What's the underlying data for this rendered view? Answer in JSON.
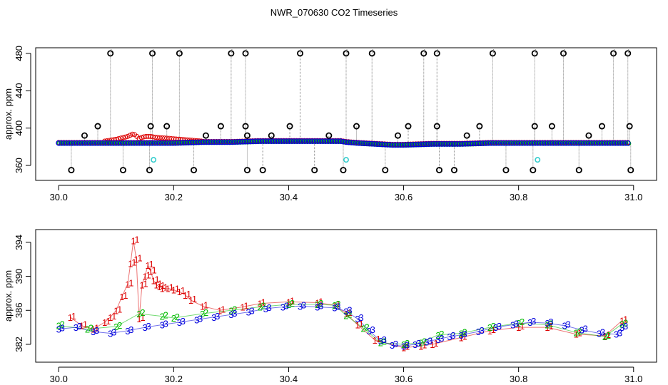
{
  "title": "NWR_070630  CO2 Timeseries",
  "chart_data": [
    {
      "type": "scatter",
      "panel": "top",
      "title": "",
      "xlabel": "",
      "ylabel": "approx. ppm",
      "xlim": [
        29.96,
        31.04
      ],
      "ylim": [
        344,
        486
      ],
      "xticks": [
        30.0,
        30.2,
        30.4,
        30.6,
        30.8,
        31.0
      ],
      "xtick_labels": [
        "30.0",
        "30.2",
        "30.4",
        "30.6",
        "30.8",
        "31.0"
      ],
      "yticks": [
        360,
        400,
        440,
        480
      ],
      "ytick_labels": [
        "360",
        "400",
        "440",
        "480"
      ],
      "grid": false,
      "colors": {
        "red": "#dd0000",
        "green": "#00bb00",
        "blue": "#0000dd",
        "black": "#000000",
        "cyan": "#33cccc",
        "gray": "#888888"
      },
      "baseline": {
        "x": [
          30.0,
          30.05,
          30.1,
          30.15,
          30.2,
          30.25,
          30.3,
          30.35,
          30.4,
          30.45,
          30.49,
          30.5,
          30.52,
          30.55,
          30.58,
          30.6,
          30.65,
          30.7,
          30.75,
          30.8,
          30.85,
          30.9,
          30.95,
          30.99
        ],
        "y": [
          384,
          384,
          384,
          384,
          384,
          385,
          385,
          386,
          386,
          386,
          386,
          385,
          384,
          383,
          382,
          382,
          383,
          383,
          384,
          384,
          384,
          384,
          384,
          384
        ]
      },
      "red_excursion": {
        "x": [
          30.08,
          30.1,
          30.12,
          30.13,
          30.14,
          30.15,
          30.16,
          30.17,
          30.19,
          30.21,
          30.23,
          30.25
        ],
        "y": [
          386,
          388,
          391,
          394,
          389,
          391,
          391,
          390,
          389,
          388,
          387,
          386
        ]
      },
      "outliers_high": {
        "x": [
          30.09,
          30.163,
          30.21,
          30.3,
          30.325,
          30.42,
          30.5,
          30.545,
          30.635,
          30.658,
          30.755,
          30.828,
          30.878,
          30.965,
          30.99
        ],
        "y": [
          480,
          480,
          480,
          480,
          480,
          480,
          480,
          480,
          480,
          480,
          480,
          480,
          480,
          480,
          480
        ]
      },
      "outliers_mid": {
        "x": [
          30.045,
          30.068,
          30.16,
          30.188,
          30.256,
          30.282,
          30.325,
          30.328,
          30.37,
          30.402,
          30.47,
          30.518,
          30.59,
          30.608,
          30.658,
          30.71,
          30.732,
          30.828,
          30.858,
          30.922,
          30.945,
          30.993
        ],
        "y": [
          392,
          402,
          402,
          402,
          392,
          402,
          402,
          392,
          392,
          402,
          392,
          402,
          392,
          402,
          402,
          392,
          402,
          402,
          402,
          392,
          402,
          402
        ]
      },
      "outliers_low": {
        "x": [
          30.022,
          30.112,
          30.158,
          30.235,
          30.328,
          30.355,
          30.445,
          30.495,
          30.568,
          30.662,
          30.688,
          30.778,
          30.825,
          30.905,
          30.995
        ],
        "y": [
          355,
          355,
          355,
          355,
          355,
          355,
          355,
          355,
          355,
          355,
          355,
          355,
          355,
          355,
          355
        ]
      },
      "cyan_points": {
        "x": [
          30.165,
          30.5,
          30.833
        ],
        "y": [
          366,
          366,
          366
        ]
      }
    },
    {
      "type": "scatter",
      "panel": "bottom",
      "title": "",
      "xlabel": "",
      "ylabel": "approx. ppm",
      "xlim": [
        29.96,
        31.04
      ],
      "ylim": [
        379.9,
        395.5
      ],
      "xticks": [
        30.0,
        30.2,
        30.4,
        30.6,
        30.8,
        31.0
      ],
      "xtick_labels": [
        "30.0",
        "30.2",
        "30.4",
        "30.6",
        "30.8",
        "31.0"
      ],
      "yticks": [
        382,
        386,
        390,
        394
      ],
      "ytick_labels": [
        "382",
        "386",
        "390",
        "394"
      ],
      "grid": false,
      "series": [
        {
          "marker": "1",
          "color": "#dd0000",
          "x": [
            30.02,
            30.04,
            30.06,
            30.08,
            30.09,
            30.1,
            30.11,
            30.12,
            30.125,
            30.13,
            30.135,
            30.14,
            30.145,
            30.15,
            30.155,
            30.16,
            30.165,
            30.17,
            30.175,
            30.18,
            30.19,
            30.2,
            30.21,
            30.22,
            30.23,
            30.25,
            30.28,
            30.32,
            30.35,
            30.4,
            30.45,
            30.48,
            30.5,
            30.52,
            30.55,
            30.6,
            30.63,
            30.65,
            30.7,
            30.75,
            30.8,
            30.85,
            30.9,
            30.95,
            30.98
          ],
          "y": [
            385.2,
            384.2,
            383.8,
            384.6,
            385.2,
            386.0,
            387.6,
            389.1,
            391.5,
            394.2,
            392.0,
            385.0,
            389.0,
            390.0,
            391.3,
            390.6,
            389.5,
            389.0,
            388.8,
            388.6,
            388.6,
            388.4,
            388.2,
            387.8,
            387.2,
            386.5,
            386.0,
            386.4,
            386.8,
            387.0,
            386.9,
            386.6,
            385.6,
            384.3,
            382.5,
            381.6,
            381.8,
            382.0,
            382.8,
            383.6,
            384.0,
            384.0,
            383.2,
            383.0,
            384.8
          ]
        },
        {
          "marker": "2",
          "color": "#00bb00",
          "x": [
            30.0,
            30.05,
            30.1,
            30.14,
            30.18,
            30.2,
            30.25,
            30.3,
            30.35,
            30.4,
            30.45,
            30.48,
            30.5,
            30.53,
            30.56,
            30.6,
            30.63,
            30.66,
            30.7,
            30.75,
            30.8,
            30.85,
            30.9,
            30.95,
            30.98
          ],
          "y": [
            384.2,
            383.8,
            384.1,
            385.6,
            385.3,
            385.1,
            385.6,
            386.0,
            386.4,
            386.7,
            386.7,
            386.6,
            385.4,
            383.9,
            382.2,
            382.0,
            382.2,
            383.1,
            383.3,
            384.0,
            384.5,
            384.3,
            383.4,
            382.9,
            384.4
          ]
        },
        {
          "marker": "3",
          "color": "#0000dd",
          "x": [
            30.0,
            30.03,
            30.06,
            30.09,
            30.12,
            30.15,
            30.18,
            30.21,
            30.24,
            30.27,
            30.3,
            30.33,
            30.36,
            30.39,
            30.42,
            30.45,
            30.48,
            30.5,
            30.52,
            30.54,
            30.56,
            30.58,
            30.6,
            30.62,
            30.64,
            30.66,
            30.68,
            30.7,
            30.73,
            30.76,
            30.79,
            30.82,
            30.85,
            30.88,
            30.91,
            30.94,
            30.97,
            30.98
          ],
          "y": [
            383.8,
            384.0,
            383.5,
            383.3,
            383.6,
            384.0,
            384.3,
            384.6,
            384.9,
            385.2,
            385.5,
            385.8,
            386.2,
            386.4,
            386.5,
            386.4,
            386.3,
            385.9,
            385.0,
            383.6,
            382.4,
            381.9,
            381.8,
            382.0,
            382.3,
            382.6,
            382.9,
            383.1,
            383.5,
            384.0,
            384.3,
            384.6,
            384.5,
            384.2,
            383.7,
            383.3,
            383.2,
            384.0
          ]
        }
      ]
    }
  ]
}
